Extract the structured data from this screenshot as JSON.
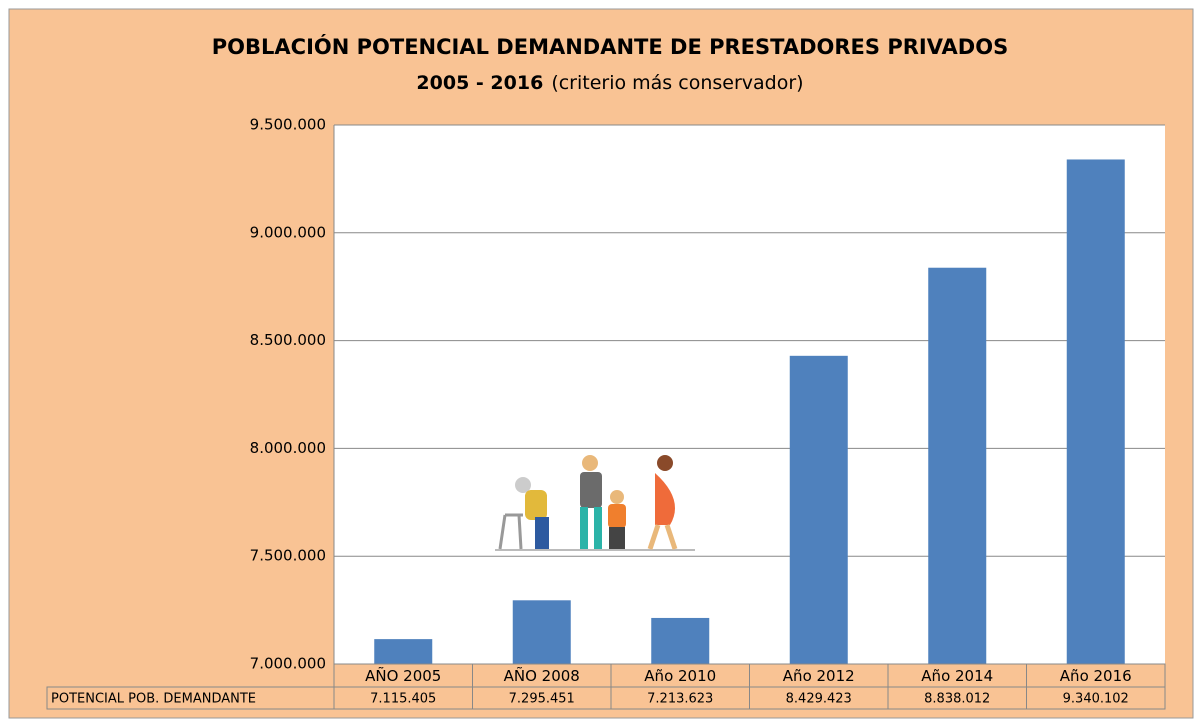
{
  "chart_data": {
    "type": "bar",
    "title": "POBLACIÓN POTENCIAL DEMANDANTE DE PRESTADORES PRIVADOS",
    "subtitle": "2005 - 2016",
    "subtitle_note": "(criterio más conservador)",
    "categories": [
      "AÑO 2005",
      "AÑO 2008",
      "Año 2010",
      "Año 2012",
      "Año 2014",
      "Año 2016"
    ],
    "series": [
      {
        "name": "POTENCIAL POB. DEMANDANTE",
        "color": "#4f81bd",
        "values": [
          7115405,
          7295451,
          7213623,
          8429423,
          8838012,
          9340102
        ],
        "value_labels": [
          "7.115.405",
          "7.295.451",
          "7.213.623",
          "8.429.423",
          "8.838.012",
          "9.340.102"
        ]
      }
    ],
    "ylim": [
      7000000,
      9500000
    ],
    "yticks": [
      {
        "value": 7000000,
        "label": "7.000.000"
      },
      {
        "value": 7500000,
        "label": "7.500.000"
      },
      {
        "value": 8000000,
        "label": "8.000.000"
      },
      {
        "value": 8500000,
        "label": "8.500.000"
      },
      {
        "value": 9000000,
        "label": "9.000.000"
      },
      {
        "value": 9500000,
        "label": "9.500.000"
      }
    ],
    "grid": true
  }
}
